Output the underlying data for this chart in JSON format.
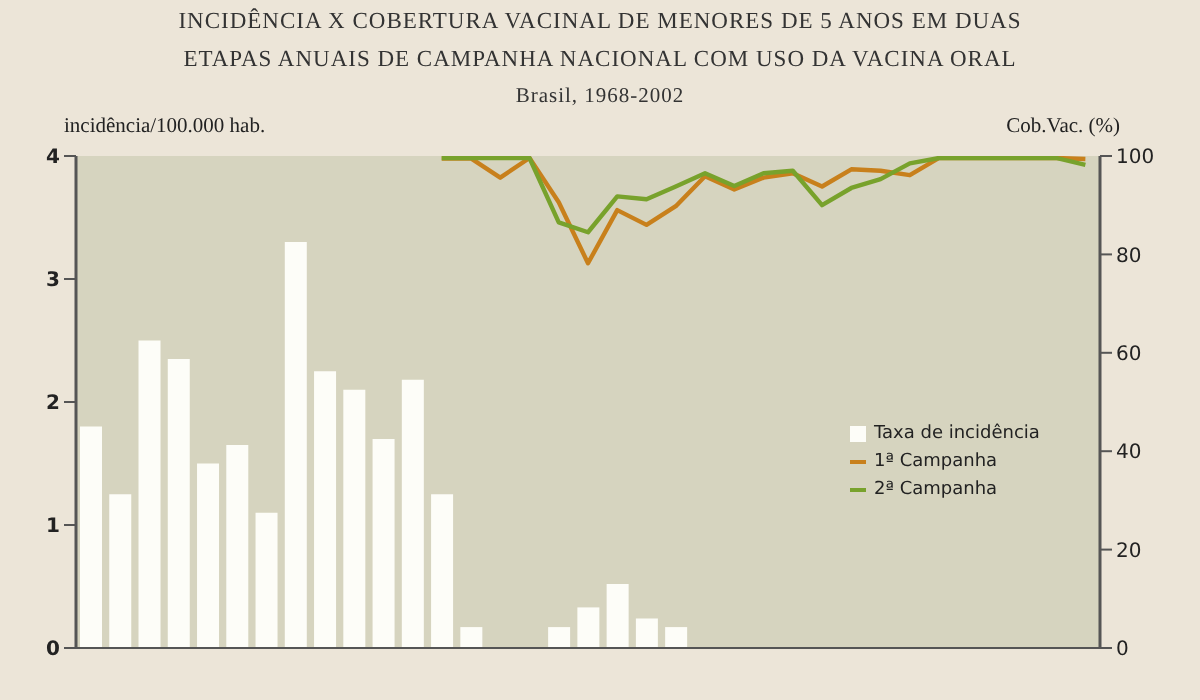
{
  "chart_data": {
    "type": "bar",
    "title": "INCIDÊNCIA X COBERTURA VACINAL DE MENORES DE 5 ANOS EM DUAS ETAPAS ANUAIS DE CAMPANHA NACIONAL COM USO DA VACINA ORAL",
    "subtitle": "Brasil, 1968-2002",
    "ylabel": "incidência/100.000 hab.",
    "y2label": "Cob.Vac. (%)",
    "categories": [
      null,
      null,
      null,
      null,
      null,
      null,
      null,
      null,
      null,
      null,
      null,
      null,
      null,
      null,
      null,
      null,
      null,
      null,
      null,
      null,
      null,
      null,
      null,
      null,
      null,
      null,
      null,
      null,
      null,
      null,
      null,
      null,
      null,
      null,
      null
    ],
    "series": [
      {
        "name": "Taxa de incidência",
        "color": "#fdfdf8",
        "values": [
          1.8,
          1.25,
          2.5,
          2.35,
          1.5,
          1.65,
          1.1,
          3.3,
          2.25,
          2.1,
          1.7,
          2.18,
          1.25,
          0.17,
          0,
          0,
          0.17,
          0.33,
          0.52,
          0.24,
          0.17,
          0,
          0,
          0,
          0,
          0,
          0,
          0,
          0,
          0,
          0,
          0,
          0,
          0,
          0
        ]
      },
      {
        "name": "1ª Campanha",
        "type": "line",
        "axis": "y2",
        "color": "#c8801c",
        "values": [
          null,
          null,
          null,
          null,
          null,
          null,
          null,
          null,
          null,
          null,
          null,
          null,
          99.5,
          99.5,
          95.6,
          99.6,
          90.6,
          78.2,
          89,
          86,
          89.8,
          95.9,
          93.2,
          95.6,
          96.5,
          93.8,
          97.3,
          97,
          96.1,
          99.6,
          99.6,
          99.6,
          99.6,
          99.6,
          99.4
        ]
      },
      {
        "name": "2ª Campanha",
        "type": "line",
        "axis": "y2",
        "color": "#78a22c",
        "values": [
          null,
          null,
          null,
          null,
          null,
          null,
          null,
          null,
          null,
          null,
          null,
          null,
          99.6,
          99.6,
          99.6,
          99.6,
          86.5,
          84.5,
          91.8,
          91.2,
          93.8,
          96.5,
          93.9,
          96.5,
          97,
          90,
          93.5,
          95.3,
          98.5,
          99.6,
          99.6,
          99.6,
          99.6,
          99.6,
          98.2
        ]
      }
    ],
    "ylim": [
      0,
      4
    ],
    "yticks": [
      0,
      1,
      2,
      3,
      4
    ],
    "y2lim": [
      0,
      100
    ],
    "y2ticks": [
      0,
      20,
      40,
      60,
      80,
      100
    ],
    "legend": "right",
    "marker": "none",
    "line_style": "solid"
  }
}
